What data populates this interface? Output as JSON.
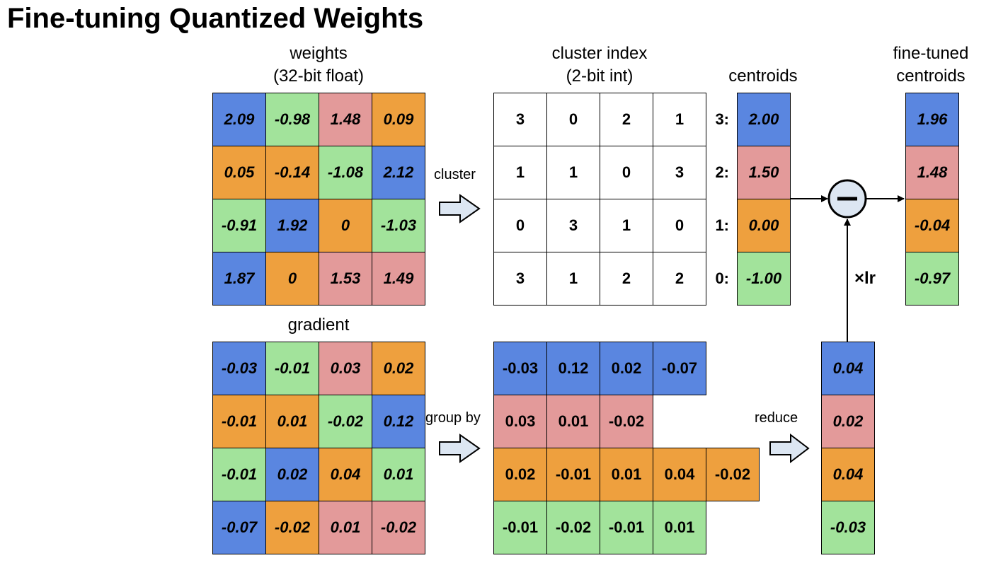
{
  "title": "Fine-tuning Quantized Weights",
  "labels": {
    "weights_line1": "weights",
    "weights_line2": "(32-bit float)",
    "cluster_index_line1": "cluster index",
    "cluster_index_line2": "(2-bit int)",
    "centroids": "centroids",
    "finetuned_line1": "fine-tuned",
    "finetuned_line2": "centroids",
    "gradient": "gradient",
    "cluster_arrow": "cluster",
    "groupby_arrow": "group by",
    "reduce_arrow": "reduce",
    "times_lr": "×lr"
  },
  "colors": {
    "c3": "#5a86e0",
    "c2": "#e39a9a",
    "c1": "#eea03e",
    "c0": "#a2e39b"
  },
  "weights": [
    [
      "2.09",
      "-0.98",
      "1.48",
      "0.09"
    ],
    [
      "0.05",
      "-0.14",
      "-1.08",
      "2.12"
    ],
    [
      "-0.91",
      "1.92",
      "0",
      "-1.03"
    ],
    [
      "1.87",
      "0",
      "1.53",
      "1.49"
    ]
  ],
  "cluster_index": [
    [
      "3",
      "0",
      "2",
      "1"
    ],
    [
      "1",
      "1",
      "0",
      "3"
    ],
    [
      "0",
      "3",
      "1",
      "0"
    ],
    [
      "3",
      "1",
      "2",
      "2"
    ]
  ],
  "centroid_ids": [
    "3:",
    "2:",
    "1:",
    "0:"
  ],
  "centroids": [
    "2.00",
    "1.50",
    "0.00",
    "-1.00"
  ],
  "finetuned": [
    "1.96",
    "1.48",
    "-0.04",
    "-0.97"
  ],
  "gradient": [
    [
      "-0.03",
      "-0.01",
      "0.03",
      "0.02"
    ],
    [
      "-0.01",
      "0.01",
      "-0.02",
      "0.12"
    ],
    [
      "-0.01",
      "0.02",
      "0.04",
      "0.01"
    ],
    [
      "-0.07",
      "-0.02",
      "0.01",
      "-0.02"
    ]
  ],
  "grouped": [
    [
      "-0.03",
      "0.12",
      "0.02",
      "-0.07"
    ],
    [
      "0.03",
      "0.01",
      "-0.02"
    ],
    [
      "0.02",
      "-0.01",
      "0.01",
      "0.04",
      "-0.02"
    ],
    [
      "-0.01",
      "-0.02",
      "-0.01",
      "0.01"
    ]
  ],
  "reduced": [
    "0.04",
    "0.02",
    "0.04",
    "-0.03"
  ]
}
